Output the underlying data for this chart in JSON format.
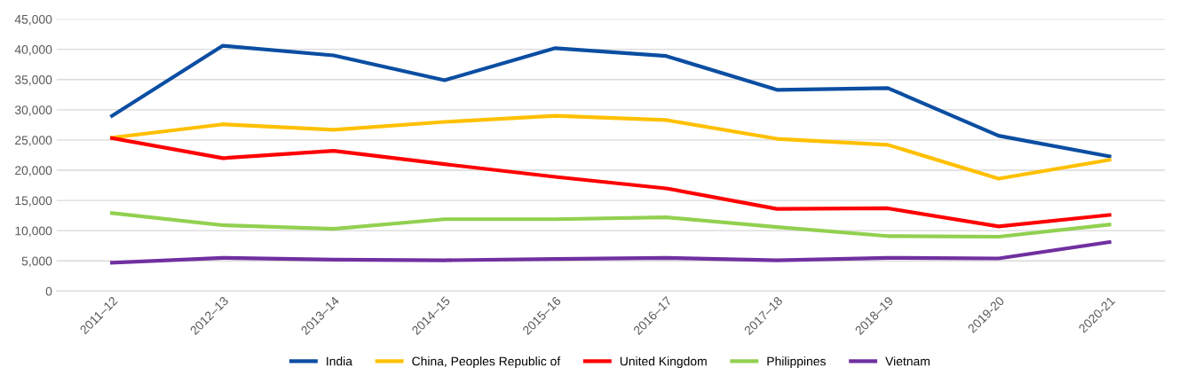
{
  "chart_data": {
    "type": "line",
    "categories": [
      "2011–12",
      "2012–13",
      "2013–14",
      "2014–15",
      "2015–16",
      "2016–17",
      "2017–18",
      "2018–19",
      "2019-20",
      "2020-21"
    ],
    "series": [
      {
        "name": "India",
        "color": "#0b4ea2",
        "values": [
          29000,
          40600,
          39000,
          34900,
          40200,
          38900,
          33300,
          33600,
          25700,
          22300
        ]
      },
      {
        "name": "China, Peoples Republic of",
        "color": "#ffc000",
        "values": [
          25400,
          27600,
          26700,
          28000,
          29000,
          28300,
          25200,
          24200,
          18600,
          21700
        ]
      },
      {
        "name": "United Kingdom",
        "color": "#ff0000",
        "values": [
          25300,
          22000,
          23200,
          21000,
          18900,
          17000,
          13600,
          13700,
          10700,
          12600
        ]
      },
      {
        "name": "Philippines",
        "color": "#92d050",
        "values": [
          12900,
          10900,
          10300,
          11900,
          11900,
          12200,
          10600,
          9100,
          9000,
          11000
        ]
      },
      {
        "name": "Vietnam",
        "color": "#7030a0",
        "values": [
          4700,
          5500,
          5200,
          5100,
          5300,
          5500,
          5100,
          5500,
          5400,
          8100
        ]
      }
    ],
    "ylim": [
      0,
      45000
    ],
    "yticks": [
      {
        "value": 0,
        "label": "0"
      },
      {
        "value": 5000,
        "label": "5,000"
      },
      {
        "value": 10000,
        "label": "10,000"
      },
      {
        "value": 15000,
        "label": "15,000"
      },
      {
        "value": 20000,
        "label": "20,000"
      },
      {
        "value": 25000,
        "label": "25,000"
      },
      {
        "value": 30000,
        "label": "30,000"
      },
      {
        "value": 35000,
        "label": "35,000"
      },
      {
        "value": 40000,
        "label": "40,000"
      },
      {
        "value": 45000,
        "label": "45,000"
      }
    ],
    "grid": "y",
    "legend": "bottom",
    "marker": "none",
    "line_style": "solid"
  }
}
